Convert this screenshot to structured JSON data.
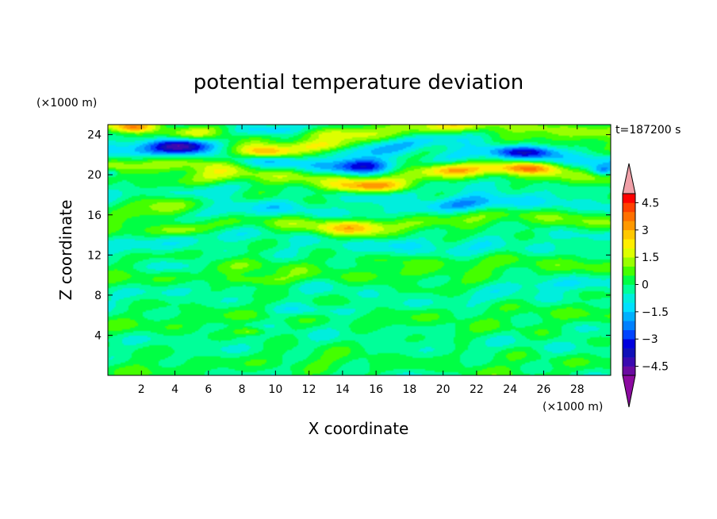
{
  "chart_data": {
    "type": "heatmap",
    "title": "potential temperature deviation",
    "xlabel": "X coordinate",
    "ylabel": "Z coordinate",
    "x_unit": "(×1000 m)",
    "y_unit": "(×1000 m)",
    "time_label": "t=187200 s",
    "xlim": [
      0,
      30
    ],
    "ylim": [
      0,
      25
    ],
    "x_ticks": [
      2,
      4,
      6,
      8,
      10,
      12,
      14,
      16,
      18,
      20,
      22,
      24,
      26,
      28
    ],
    "y_ticks": [
      4,
      8,
      12,
      16,
      20,
      24
    ],
    "colorbar": {
      "levels": [
        -5,
        -4.5,
        -4,
        -3.5,
        -3,
        -2.5,
        -2,
        -1.5,
        -1,
        -0.5,
        0,
        0.5,
        1,
        1.5,
        2,
        2.5,
        3,
        3.5,
        4,
        4.5,
        5
      ],
      "tick_labels": [
        "4.5",
        "3",
        "1.5",
        "0",
        "−1.5",
        "−3",
        "−4.5"
      ],
      "tick_values": [
        4.5,
        3,
        1.5,
        0,
        -1.5,
        -3,
        -4.5
      ],
      "colors": [
        "#6a0aa0",
        "#3a0ab0",
        "#1010b8",
        "#0000dd",
        "#0044ff",
        "#0080ff",
        "#00b0ff",
        "#00e0ff",
        "#00eedd",
        "#00ff99",
        "#00ff44",
        "#44ff00",
        "#99ff00",
        "#ddff00",
        "#ffee00",
        "#ffc800",
        "#ff9900",
        "#ff7000",
        "#ff4000",
        "#ff0000"
      ],
      "over_color": "#f0a0a8",
      "under_color": "#8c0aa0"
    },
    "anomalies": [
      {
        "x": 4.2,
        "z": 23.0,
        "amp": -3.4,
        "sx": 1.6,
        "sz": 0.8
      },
      {
        "x": 10.0,
        "z": 24.5,
        "amp": -2.8,
        "sx": 2.8,
        "sz": 0.6
      },
      {
        "x": 15.3,
        "z": 20.9,
        "amp": -3.3,
        "sx": 1.6,
        "sz": 0.8
      },
      {
        "x": 25.0,
        "z": 22.3,
        "amp": -2.2,
        "sx": 2.0,
        "sz": 0.6
      },
      {
        "x": 29.5,
        "z": 20.4,
        "amp": -2.0,
        "sx": 0.7,
        "sz": 0.5
      },
      {
        "x": 0.2,
        "z": 20.2,
        "amp": -1.5,
        "sx": 0.4,
        "sz": 0.4
      },
      {
        "x": 1.5,
        "z": 24.7,
        "amp": 2.6,
        "sx": 1.3,
        "sz": 0.5
      },
      {
        "x": 9.5,
        "z": 22.2,
        "amp": 3.1,
        "sx": 1.6,
        "sz": 0.6
      },
      {
        "x": 13.0,
        "z": 22.9,
        "amp": 2.6,
        "sx": 2.0,
        "sz": 0.6
      },
      {
        "x": 6.5,
        "z": 21.0,
        "amp": 1.6,
        "sx": 2.2,
        "sz": 0.8
      },
      {
        "x": 16.0,
        "z": 18.8,
        "amp": 2.3,
        "sx": 2.6,
        "sz": 0.6
      },
      {
        "x": 25.0,
        "z": 20.7,
        "amp": 2.6,
        "sx": 2.0,
        "sz": 0.6
      },
      {
        "x": 20.5,
        "z": 20.5,
        "amp": 1.6,
        "sx": 1.6,
        "sz": 0.6
      },
      {
        "x": 3.0,
        "z": 17.5,
        "amp": 1.6,
        "sx": 2.4,
        "sz": 0.8
      },
      {
        "x": 14.5,
        "z": 14.8,
        "amp": 2.0,
        "sx": 2.0,
        "sz": 0.8
      },
      {
        "x": 9.0,
        "z": 9.5,
        "amp": 1.7,
        "sx": 2.2,
        "sz": 0.6
      },
      {
        "x": 8.5,
        "z": 4.4,
        "amp": 1.5,
        "sx": 1.0,
        "sz": 0.4
      },
      {
        "x": 18.0,
        "z": 11.5,
        "amp": 1.0,
        "sx": 3.0,
        "sz": 0.6
      },
      {
        "x": 4.5,
        "z": 14.5,
        "amp": 1.1,
        "sx": 1.5,
        "sz": 0.5
      },
      {
        "x": 7.0,
        "z": 16.0,
        "amp": -1.2,
        "sx": 2.5,
        "sz": 0.8
      },
      {
        "x": 22.0,
        "z": 17.0,
        "amp": -1.3,
        "sx": 3.0,
        "sz": 0.8
      },
      {
        "x": 18.0,
        "z": 13.0,
        "amp": -1.0,
        "sx": 2.5,
        "sz": 0.6
      },
      {
        "x": 12.0,
        "z": 6.5,
        "amp": -1.0,
        "sx": 3.0,
        "sz": 0.6
      },
      {
        "x": 4.0,
        "z": 11.0,
        "amp": -0.9,
        "sx": 2.0,
        "sz": 0.8
      },
      {
        "x": 26.0,
        "z": 9.0,
        "amp": -0.9,
        "sx": 2.5,
        "sz": 0.6
      }
    ]
  }
}
